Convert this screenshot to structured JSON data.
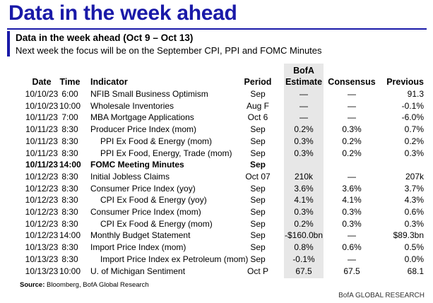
{
  "title": "Data in the week ahead",
  "subtitle": "Data in the week ahead (Oct 9 – Oct 13)",
  "description": "Next week the focus will be on the September CPI, PPI and FOMC Minutes",
  "headers": {
    "date": "Date",
    "time": "Time",
    "indicator": "Indicator",
    "period": "Period",
    "bofa_line1": "BofA",
    "bofa_line2": "Estimate",
    "consensus": "Consensus",
    "previous": "Previous"
  },
  "rows": [
    {
      "date": "10/10/23",
      "time": "6:00",
      "indicator": "NFIB Small Business Optimism",
      "period": "Sep",
      "estimate": "—",
      "consensus": "—",
      "previous": "91.3",
      "indent": false,
      "bold": false
    },
    {
      "date": "10/10/23",
      "time": "10:00",
      "indicator": "Wholesale Inventories",
      "period": "Aug F",
      "estimate": "—",
      "consensus": "—",
      "previous": "-0.1%",
      "indent": false,
      "bold": false
    },
    {
      "date": "10/11/23",
      "time": "7:00",
      "indicator": "MBA Mortgage Applications",
      "period": "Oct 6",
      "estimate": "—",
      "consensus": "—",
      "previous": "-6.0%",
      "indent": false,
      "bold": false
    },
    {
      "date": "10/11/23",
      "time": "8:30",
      "indicator": "Producer Price Index (mom)",
      "period": "Sep",
      "estimate": "0.2%",
      "consensus": "0.3%",
      "previous": "0.7%",
      "indent": false,
      "bold": false
    },
    {
      "date": "10/11/23",
      "time": "8:30",
      "indicator": "PPI Ex Food & Energy (mom)",
      "period": "Sep",
      "estimate": "0.3%",
      "consensus": "0.2%",
      "previous": "0.2%",
      "indent": true,
      "bold": false
    },
    {
      "date": "10/11/23",
      "time": "8:30",
      "indicator": "PPI Ex Food, Energy, Trade (mom)",
      "period": "Sep",
      "estimate": "0.3%",
      "consensus": "0.2%",
      "previous": "0.3%",
      "indent": true,
      "bold": false
    },
    {
      "date": "10/11/23",
      "time": "14:00",
      "indicator": "FOMC Meeting Minutes",
      "period": "Sep",
      "estimate": "",
      "consensus": "",
      "previous": "",
      "indent": false,
      "bold": true
    },
    {
      "date": "10/12/23",
      "time": "8:30",
      "indicator": "Initial Jobless Claims",
      "period": "Oct 07",
      "estimate": "210k",
      "consensus": "—",
      "previous": "207k",
      "indent": false,
      "bold": false
    },
    {
      "date": "10/12/23",
      "time": "8:30",
      "indicator": "Consumer Price Index (yoy)",
      "period": "Sep",
      "estimate": "3.6%",
      "consensus": "3.6%",
      "previous": "3.7%",
      "indent": false,
      "bold": false
    },
    {
      "date": "10/12/23",
      "time": "8:30",
      "indicator": "CPI Ex Food & Energy (yoy)",
      "period": "Sep",
      "estimate": "4.1%",
      "consensus": "4.1%",
      "previous": "4.3%",
      "indent": true,
      "bold": false
    },
    {
      "date": "10/12/23",
      "time": "8:30",
      "indicator": "Consumer Price Index (mom)",
      "period": "Sep",
      "estimate": "0.3%",
      "consensus": "0.3%",
      "previous": "0.6%",
      "indent": false,
      "bold": false
    },
    {
      "date": "10/12/23",
      "time": "8:30",
      "indicator": "CPI Ex Food & Energy (mom)",
      "period": "Sep",
      "estimate": "0.2%",
      "consensus": "0.3%",
      "previous": "0.3%",
      "indent": true,
      "bold": false
    },
    {
      "date": "10/12/23",
      "time": "14:00",
      "indicator": "Monthly Budget Statement",
      "period": "Sep",
      "estimate": "-$160.0bn",
      "consensus": "—",
      "previous": "$89.3bn",
      "indent": false,
      "bold": false
    },
    {
      "date": "10/13/23",
      "time": "8:30",
      "indicator": "Import Price Index (mom)",
      "period": "Sep",
      "estimate": "0.8%",
      "consensus": "0.6%",
      "previous": "0.5%",
      "indent": false,
      "bold": false
    },
    {
      "date": "10/13/23",
      "time": "8:30",
      "indicator": "Import Price Index ex Petroleum (mom)",
      "period": "Sep",
      "estimate": "-0.1%",
      "consensus": "—",
      "previous": "0.0%",
      "indent": true,
      "bold": false
    },
    {
      "date": "10/13/23",
      "time": "10:00",
      "indicator": "U. of Michigan Sentiment",
      "period": "Oct P",
      "estimate": "67.5",
      "consensus": "67.5",
      "previous": "68.1",
      "indent": false,
      "bold": false
    }
  ],
  "source": {
    "label": "Source:",
    "text": " Bloomberg, BofA Global Research"
  },
  "credit": "BofA GLOBAL RESEARCH",
  "colors": {
    "title": "#1a1aa8",
    "estimate_shade": "#e7e7e7"
  }
}
